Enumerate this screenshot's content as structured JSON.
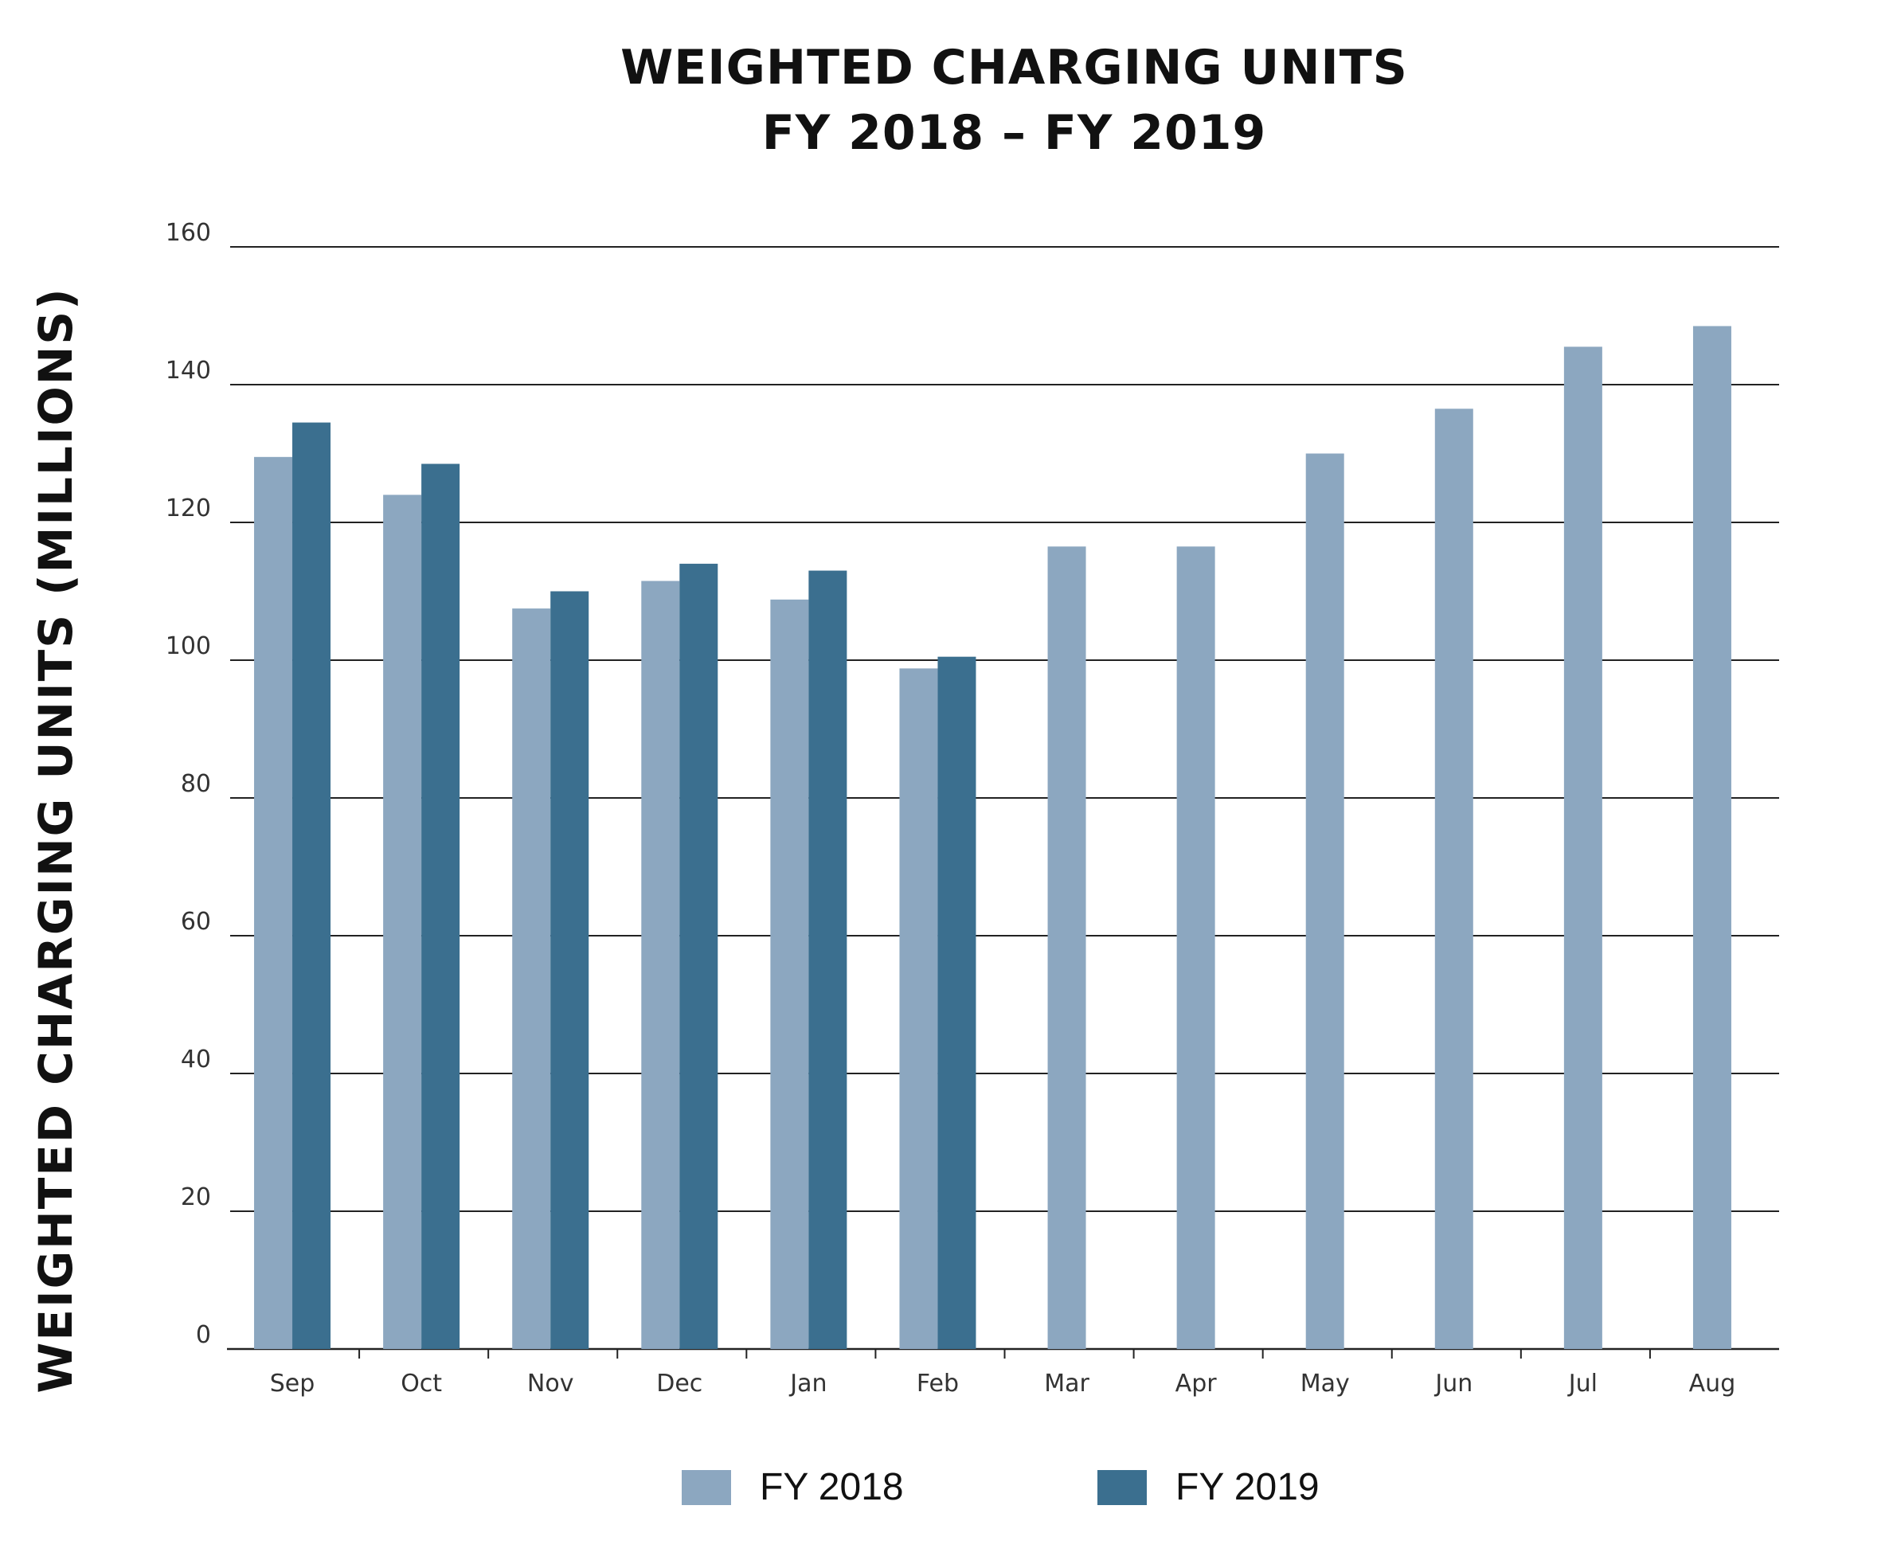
{
  "chart_data": {
    "type": "bar",
    "title_lines": [
      "WEIGHTED CHARGING UNITS",
      "FY 2018 – FY 2019"
    ],
    "xlabel": "",
    "ylabel": "WEIGHTED CHARGING UNITS (MILLIONS)",
    "ylim": [
      0,
      160
    ],
    "yticks": [
      "0",
      "20",
      "40",
      "60",
      "80",
      "100",
      "120",
      "140",
      "160"
    ],
    "grid": true,
    "categories": [
      "Sep",
      "Oct",
      "Nov",
      "Dec",
      "Jan",
      "Feb",
      "Mar",
      "Apr",
      "May",
      "Jun",
      "Jul",
      "Aug"
    ],
    "series": [
      {
        "name": "FY 2018",
        "color": "#8ca7c0",
        "values": [
          129.5,
          124,
          107.5,
          111.5,
          108.8,
          98.8,
          116.5,
          116.5,
          130,
          136.5,
          145.5,
          148.5
        ]
      },
      {
        "name": "FY 2019",
        "color": "#3b6f8f",
        "values": [
          134.5,
          128.5,
          110,
          114,
          113,
          100.5,
          null,
          null,
          null,
          null,
          null,
          null
        ]
      }
    ],
    "legend_position": "bottom"
  }
}
